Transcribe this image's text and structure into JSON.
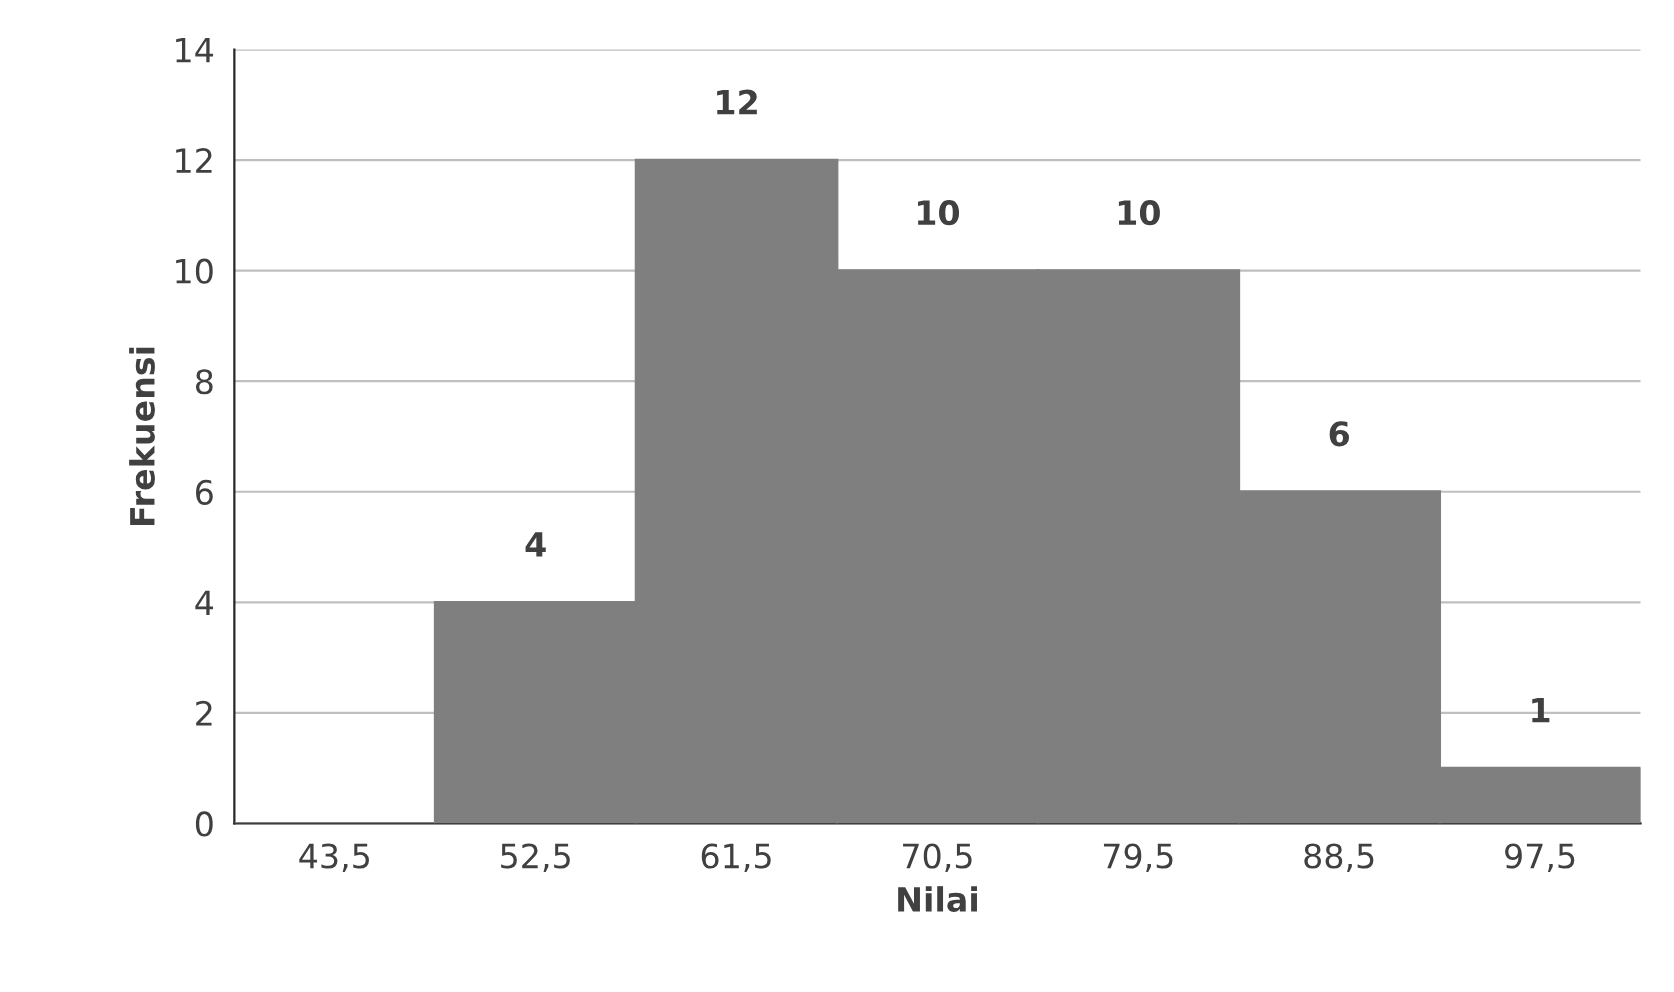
{
  "chart_data": {
    "type": "bar",
    "xlabel": "Nilai",
    "ylabel": "Frekuensi",
    "categories": [
      "43,5",
      "52,5",
      "61,5",
      "70,5",
      "79,5",
      "88,5",
      "97,5"
    ],
    "values": [
      0,
      4,
      12,
      10,
      10,
      6,
      1
    ],
    "value_labels": [
      null,
      "4",
      "12",
      "10",
      "10",
      "6",
      "1"
    ],
    "color": "#7f7f7f",
    "ylim": [
      0,
      14
    ],
    "yticks": [
      0,
      2,
      4,
      6,
      8,
      10,
      12,
      14
    ],
    "grid": "y",
    "legend": false
  }
}
